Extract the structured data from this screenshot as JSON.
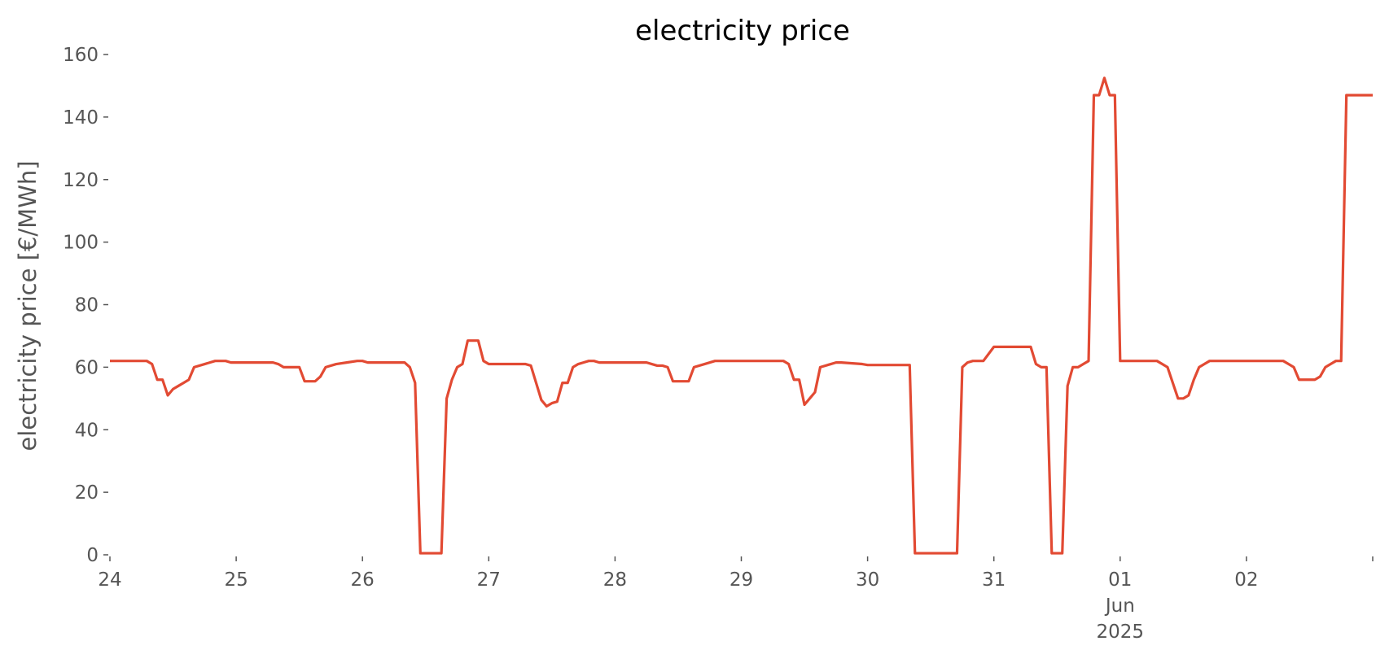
{
  "chart_data": {
    "type": "line",
    "title": "electricity price",
    "ylabel": "electricity price [€/MWh]",
    "x": [
      0,
      7,
      8,
      9,
      10,
      11,
      12,
      13,
      14,
      15,
      16,
      18,
      20,
      22,
      23,
      31,
      32,
      33,
      36,
      37,
      39,
      40,
      41,
      43,
      45,
      47,
      48,
      49,
      56,
      57,
      58,
      59,
      63,
      64,
      65,
      66,
      67,
      68,
      70,
      71,
      72,
      79,
      80,
      81,
      82,
      83,
      84,
      85,
      86,
      87,
      88,
      89,
      90,
      91,
      92,
      93,
      102,
      103,
      104,
      105,
      106,
      107,
      110,
      111,
      113,
      115,
      128,
      129,
      130,
      131,
      132,
      133,
      134,
      135,
      137,
      138,
      139,
      143,
      144,
      152,
      153,
      161,
      162,
      163,
      164,
      166,
      168,
      175,
      176,
      177,
      178,
      179,
      181,
      182,
      183,
      184,
      185,
      186,
      187,
      188,
      189,
      190,
      191,
      192,
      199,
      200,
      201,
      202,
      203,
      204,
      205,
      206,
      207,
      208,
      209,
      223,
      224,
      225,
      226,
      229,
      230,
      231,
      232,
      233,
      234,
      235,
      240
    ],
    "series": [
      {
        "name": "electricity price",
        "color": "#e24a33",
        "values": [
          62,
          62,
          61,
          56,
          56,
          51,
          53,
          54,
          55,
          56,
          60,
          61,
          62,
          62,
          61.5,
          61.5,
          61,
          60,
          60,
          55.5,
          55.5,
          57,
          60,
          61,
          61.5,
          62,
          62,
          61.5,
          61.5,
          60,
          55,
          0.5,
          0.5,
          50,
          56,
          60,
          61,
          68.5,
          68.5,
          62,
          61,
          61,
          60.5,
          55,
          49.5,
          47.5,
          48.5,
          49,
          55,
          55,
          60,
          61,
          61.5,
          62,
          62,
          61.5,
          61.5,
          61,
          60.5,
          60.5,
          60,
          55.5,
          55.5,
          60,
          61,
          62,
          62,
          61,
          56,
          56,
          48,
          50,
          52,
          60,
          61,
          61.5,
          61.5,
          61,
          60.7,
          60.7,
          0.5,
          0.5,
          60,
          61.5,
          62,
          62,
          66.5,
          66.5,
          61,
          60,
          60,
          0.5,
          0.5,
          54,
          60,
          60,
          61,
          62,
          147,
          147,
          152.5,
          147,
          147,
          62,
          62,
          61,
          60,
          55,
          50,
          50,
          51,
          56,
          60,
          61,
          62,
          62,
          61,
          60,
          56,
          56,
          57,
          60,
          61,
          62,
          62,
          147,
          147
        ]
      }
    ],
    "xlim": [
      0,
      240
    ],
    "xticks": [
      {
        "value": 0,
        "label": "24"
      },
      {
        "value": 24,
        "label": "25"
      },
      {
        "value": 48,
        "label": "26"
      },
      {
        "value": 72,
        "label": "27"
      },
      {
        "value": 96,
        "label": "28"
      },
      {
        "value": 120,
        "label": "29"
      },
      {
        "value": 144,
        "label": "30"
      },
      {
        "value": 168,
        "label": "31"
      },
      {
        "value": 192,
        "label": "01\nJun\n2025"
      },
      {
        "value": 216,
        "label": "02"
      },
      {
        "value": 240,
        "label": null
      }
    ],
    "ylim": [
      0,
      160
    ],
    "yticks": [
      0,
      20,
      40,
      60,
      80,
      100,
      120,
      140,
      160
    ],
    "grid": false
  }
}
